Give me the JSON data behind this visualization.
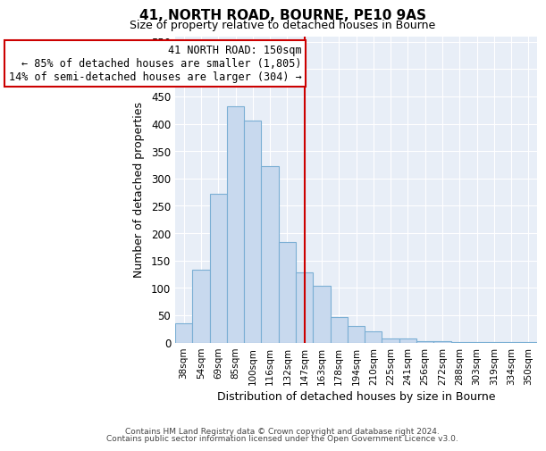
{
  "title": "41, NORTH ROAD, BOURNE, PE10 9AS",
  "subtitle": "Size of property relative to detached houses in Bourne",
  "xlabel": "Distribution of detached houses by size in Bourne",
  "ylabel": "Number of detached properties",
  "bar_labels": [
    "38sqm",
    "54sqm",
    "69sqm",
    "85sqm",
    "100sqm",
    "116sqm",
    "132sqm",
    "147sqm",
    "163sqm",
    "178sqm",
    "194sqm",
    "210sqm",
    "225sqm",
    "241sqm",
    "256sqm",
    "272sqm",
    "288sqm",
    "303sqm",
    "319sqm",
    "334sqm",
    "350sqm"
  ],
  "bar_values": [
    35,
    133,
    272,
    432,
    405,
    322,
    183,
    128,
    103,
    46,
    30,
    21,
    8,
    7,
    2,
    2,
    1,
    1,
    1,
    1,
    1
  ],
  "bar_color": "#c8d9ee",
  "bar_edge_color": "#7bafd4",
  "vline_x_index": 7,
  "vline_color": "#cc0000",
  "annotation_title": "41 NORTH ROAD: 150sqm",
  "annotation_line1": "← 85% of detached houses are smaller (1,805)",
  "annotation_line2": "14% of semi-detached houses are larger (304) →",
  "annotation_box_facecolor": "#ffffff",
  "annotation_box_edgecolor": "#cc0000",
  "footer_line1": "Contains HM Land Registry data © Crown copyright and database right 2024.",
  "footer_line2": "Contains public sector information licensed under the Open Government Licence v3.0.",
  "ylim": [
    0,
    560
  ],
  "yticks": [
    0,
    50,
    100,
    150,
    200,
    250,
    300,
    350,
    400,
    450,
    500,
    550
  ],
  "plot_bg_color": "#e8eef7",
  "fig_bg_color": "#ffffff",
  "grid_color": "#ffffff"
}
